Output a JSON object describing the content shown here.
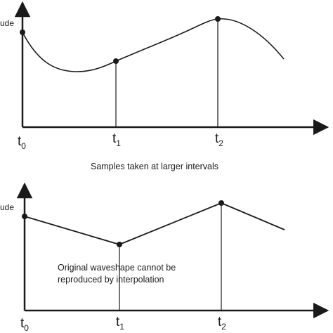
{
  "top_panel": {
    "y_axis_label": "ude",
    "ticks": [
      {
        "main": "t",
        "sub": "0"
      },
      {
        "main": "t",
        "sub": "1"
      },
      {
        "main": "t",
        "sub": "2"
      }
    ]
  },
  "caption": "Samples taken at larger intervals",
  "bottom_panel": {
    "y_axis_label": "ude",
    "ticks": [
      {
        "main": "t",
        "sub": "0"
      },
      {
        "main": "t",
        "sub": "1"
      },
      {
        "main": "t",
        "sub": "2"
      }
    ],
    "note_line1": "Original waveshape cannot be",
    "note_line2": "reproduced by interpolation"
  },
  "colors": {
    "ink": "#1a1a1a"
  }
}
